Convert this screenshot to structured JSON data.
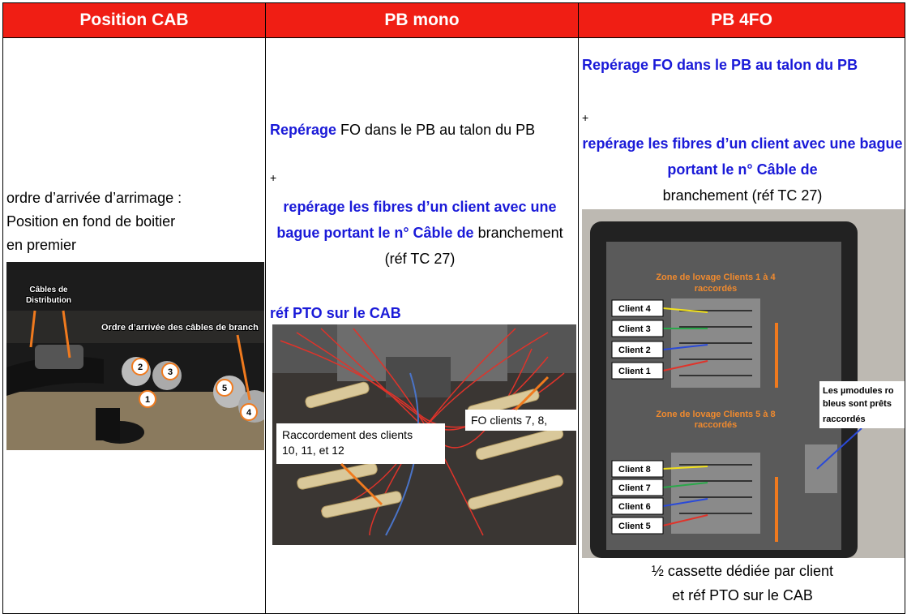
{
  "table": {
    "headers": [
      "Position CAB",
      "PB mono",
      "PB 4FO"
    ],
    "col1": {
      "lines": [
        "ordre d’arrivée d’arrimage :",
        "Position en fond de boitier",
        "en premier"
      ],
      "photo": {
        "label_distribution": [
          "Câbles de",
          "Distribution"
        ],
        "label_order": "Ordre d’arrivée des câbles de branch",
        "numbers": [
          "1",
          "2",
          "3",
          "4",
          "5"
        ]
      }
    },
    "col2": {
      "p1_bold": "Repérage",
      "p1_rest": " FO dans le PB au talon du PB",
      "plus": "+",
      "p2_bold": "repérage les fibres d’un client avec une bague portant le n° Câble de",
      "p2_rest": " branchement (réf TC 27)",
      "p3_bold": "réf PTO sur le CAB",
      "photo": {
        "label_raccordement": [
          "Raccordement des clients",
          "10, 11, et 12"
        ],
        "label_fo": "FO clients 7, 8,"
      }
    },
    "col3": {
      "p1_bold": "Repérage FO dans le PB au talon du PB",
      "plus": "+",
      "p2_bold": "repérage les fibres d’un client avec une bague portant le n° Câble de",
      "p2_rest": "branchement (réf TC 27)",
      "photo": {
        "zone_top": [
          "Zone de lovage Clients 1 à 4",
          "raccordés"
        ],
        "zone_bottom": [
          "Zone de lovage Clients  5 à 8",
          "raccordés"
        ],
        "clients_top": [
          "Client 4",
          "Client 3",
          "Client 2",
          "Client 1"
        ],
        "clients_bottom": [
          "Client 8",
          "Client 7",
          "Client 6",
          "Client 5"
        ],
        "modules": [
          "Les µmodules ro",
          "bleus sont prêts",
          "raccordés"
        ]
      },
      "caption": [
        "½ cassette dédiée par client",
        "et  réf PTO sur le CAB"
      ]
    }
  }
}
